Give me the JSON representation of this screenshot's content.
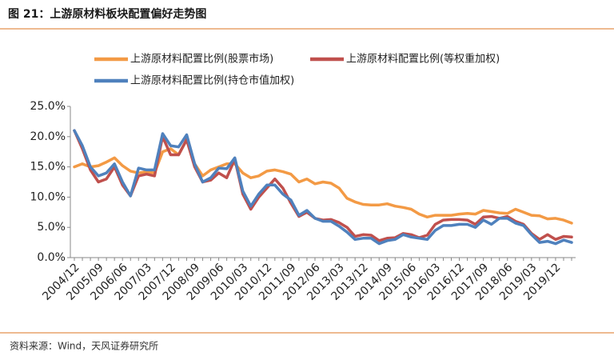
{
  "chart_data": {
    "type": "line",
    "title": "图 21：上游原材料板块配置偏好走势图",
    "source": "资料来源：Wind，天风证券研究所",
    "categories": [
      "2004/12",
      null,
      null,
      "2005/09",
      null,
      null,
      "2006/06",
      null,
      null,
      "2007/03",
      null,
      null,
      "2007/12",
      null,
      null,
      "2008/09",
      null,
      null,
      "2009/06",
      null,
      null,
      "2010/03",
      null,
      null,
      "2010/12",
      null,
      null,
      "2011/09",
      null,
      null,
      "2012/06",
      null,
      null,
      "2013/03",
      null,
      null,
      "2013/12",
      null,
      null,
      "2014/09",
      null,
      null,
      "2015/06",
      null,
      null,
      "2016/03",
      null,
      null,
      "2016/12",
      null,
      null,
      "2017/09",
      null,
      null,
      "2018/06",
      null,
      null,
      "2019/03",
      null,
      null,
      "2019/12",
      null,
      null
    ],
    "series": [
      {
        "name": "上游原材料配置比例(股票市场)",
        "color": "#f39a45",
        "values": [
          15,
          15.5,
          15,
          15.2,
          15.8,
          16.5,
          15.2,
          14.3,
          14,
          14.2,
          14,
          17.5,
          18,
          17,
          19.5,
          15.5,
          13.5,
          14.5,
          15,
          15.5,
          15.5,
          14,
          13.2,
          13.5,
          14.3,
          14.5,
          14.2,
          13.8,
          12.5,
          13,
          12.2,
          12.5,
          12.3,
          11.5,
          9.8,
          9.2,
          8.8,
          8.7,
          8.7,
          8.9,
          8.5,
          8.3,
          8,
          7.2,
          6.7,
          7,
          7,
          7,
          7.2,
          7.3,
          7.2,
          7.8,
          7.6,
          7.4,
          7.3,
          8,
          7.5,
          7,
          6.9,
          6.4,
          6.5,
          6.2,
          5.7
        ]
      },
      {
        "name": "上游原材料配置比例(等权重加权)",
        "color": "#c0504d",
        "values": [
          21,
          18,
          14.5,
          12.5,
          13,
          15,
          12,
          10.2,
          13.5,
          13.8,
          13.5,
          20,
          17,
          17,
          19.5,
          15,
          12.5,
          12.8,
          14,
          13.2,
          16.3,
          10.5,
          8,
          10,
          11.5,
          13,
          11.5,
          9,
          6.8,
          7.5,
          6.5,
          6.2,
          6.3,
          5.8,
          5,
          3.5,
          3.8,
          3.7,
          2.8,
          3.2,
          3.3,
          4,
          3.8,
          3.3,
          3.7,
          5.5,
          6.2,
          6.3,
          6.3,
          6.2,
          5.5,
          6.7,
          6.8,
          6.5,
          6.8,
          6,
          5.5,
          4,
          3,
          3.8,
          3,
          3.5,
          3.4
        ]
      },
      {
        "name": "上游原材料配置比例(持仓市值加权)",
        "color": "#4f81bd",
        "values": [
          21,
          18.5,
          15,
          13.5,
          14,
          15.5,
          12.5,
          10.2,
          14.8,
          14.5,
          14.5,
          20.5,
          18.5,
          18.3,
          20.3,
          15.5,
          12.5,
          13.2,
          14.8,
          14.7,
          16.5,
          11,
          8.5,
          10.5,
          12,
          12,
          10.5,
          9.5,
          7,
          7.8,
          6.5,
          6,
          6,
          5.2,
          4.2,
          3,
          3.2,
          3.2,
          2.3,
          2.8,
          3,
          3.8,
          3.4,
          3.2,
          3,
          4.5,
          5.3,
          5.3,
          5.5,
          5.5,
          5,
          6.2,
          5.5,
          6.5,
          6.5,
          5.7,
          5.3,
          3.8,
          2.5,
          2.7,
          2.3,
          2.9,
          2.5
        ]
      }
    ],
    "ylim": [
      0,
      25
    ],
    "yticks": [
      {
        "value": 0,
        "label": "0.0%"
      },
      {
        "value": 5,
        "label": "5.0%"
      },
      {
        "value": 10,
        "label": "10.0%"
      },
      {
        "value": 15,
        "label": "15.0%"
      },
      {
        "value": 20,
        "label": "20.0%"
      },
      {
        "value": 25,
        "label": "25.0%"
      }
    ]
  }
}
